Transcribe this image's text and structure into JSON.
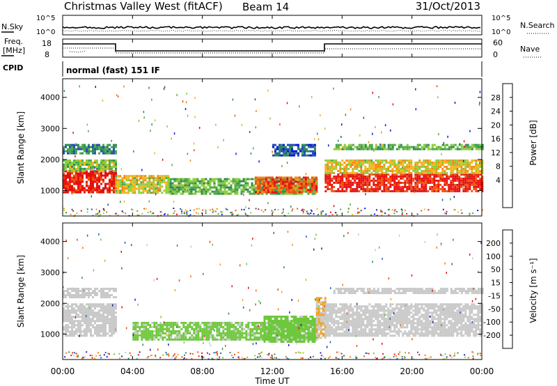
{
  "header": {
    "station": "Christmas Valley West (fitACF)",
    "beam": "Beam 14",
    "date": "31/Oct/2013"
  },
  "noise_panel": {
    "left_label": "N.Sky",
    "right_label": "N.Search",
    "left_ticks": [
      "10^5",
      "10^0"
    ],
    "right_ticks": [
      "10^5",
      "10^0"
    ]
  },
  "freq_panel": {
    "left_label_1": "Freq.",
    "left_label_2": "[MHz]",
    "right_label": "Nave",
    "left_ticks": [
      "18",
      "8"
    ],
    "right_ticks": [
      "60",
      "0"
    ]
  },
  "cpid_panel": {
    "label": "CPID",
    "mode": "normal (fast) 151 IF"
  },
  "power_panel": {
    "ylabel": "Slant Range [km]",
    "yticks": [
      "4000",
      "3000",
      "2000",
      "1000"
    ],
    "colorbar_label": "Power [dB]",
    "colorbar_ticks": [
      "28",
      "24",
      "20",
      "16",
      "12",
      "8",
      "4"
    ],
    "colors": [
      "#0a12e6",
      "#1f4fb4",
      "#2e8a5a",
      "#4fa848",
      "#8ccd3a",
      "#f0b61f",
      "#f08c14",
      "#ee5012",
      "#e61010"
    ]
  },
  "velocity_panel": {
    "ylabel": "Slant Range [km]",
    "yticks": [
      "4000",
      "3000",
      "2000",
      "1000"
    ],
    "colorbar_label": "Velocity [m s⁻¹]",
    "colorbar_ticks": [
      "200",
      "100",
      "50",
      "15",
      "-15",
      "-50",
      "-100",
      "-200"
    ],
    "colors": [
      "#1e1eb4",
      "#2460c0",
      "#2e8c60",
      "#6ec83c",
      "#c8c8c8",
      "#f0a020",
      "#f07818",
      "#ee4a14",
      "#e61414"
    ]
  },
  "xaxis": {
    "label": "Time UT",
    "ticks": [
      "00:00",
      "04:00",
      "08:00",
      "12:00",
      "16:00",
      "20:00",
      "00:00"
    ]
  },
  "chart_data": [
    {
      "type": "heatmap",
      "quantity": "power",
      "units": "dB",
      "xlim_hours": [
        0,
        24
      ],
      "ylim_km": [
        180,
        4600
      ],
      "clim": [
        0,
        32
      ],
      "bands": [
        {
          "t": [
            0.0,
            3.0
          ],
          "range": [
            950,
            1650
          ],
          "value": 30
        },
        {
          "t": [
            0.0,
            3.0
          ],
          "range": [
            1650,
            2000
          ],
          "value": 15
        },
        {
          "t": [
            0.0,
            3.0
          ],
          "range": [
            2200,
            2500
          ],
          "value": 9
        },
        {
          "t": [
            3.0,
            6.0
          ],
          "range": [
            900,
            1500
          ],
          "value": 18
        },
        {
          "t": [
            6.0,
            14.5
          ],
          "range": [
            900,
            1400
          ],
          "value": 13
        },
        {
          "t": [
            11.0,
            14.5
          ],
          "range": [
            950,
            1450
          ],
          "value": 27
        },
        {
          "t": [
            12.0,
            14.5
          ],
          "range": [
            2100,
            2500
          ],
          "value": 6
        },
        {
          "t": [
            15.0,
            24.0
          ],
          "range": [
            950,
            1550
          ],
          "value": 30
        },
        {
          "t": [
            15.0,
            24.0
          ],
          "range": [
            1550,
            2000
          ],
          "value": 19
        },
        {
          "t": [
            15.5,
            24.0
          ],
          "range": [
            2300,
            2500
          ],
          "value": 13
        }
      ]
    },
    {
      "type": "heatmap",
      "quantity": "velocity",
      "units": "m s⁻¹",
      "xlim_hours": [
        0,
        24
      ],
      "ylim_km": [
        180,
        4600
      ],
      "clim": [
        -250,
        250
      ],
      "bands": [
        {
          "t": [
            0.0,
            3.0
          ],
          "range": [
            950,
            2000
          ],
          "value": 0
        },
        {
          "t": [
            0.0,
            3.0
          ],
          "range": [
            2200,
            2500
          ],
          "value": 0
        },
        {
          "t": [
            4.0,
            14.5
          ],
          "range": [
            800,
            1400
          ],
          "value": -40
        },
        {
          "t": [
            11.5,
            14.5
          ],
          "range": [
            750,
            1600
          ],
          "value": -45
        },
        {
          "t": [
            14.5,
            15.0
          ],
          "range": [
            900,
            2200
          ],
          "value": 30
        },
        {
          "t": [
            15.0,
            24.0
          ],
          "range": [
            950,
            2000
          ],
          "value": 0
        },
        {
          "t": [
            15.5,
            24.0
          ],
          "range": [
            2300,
            2500
          ],
          "value": 0
        }
      ]
    }
  ]
}
